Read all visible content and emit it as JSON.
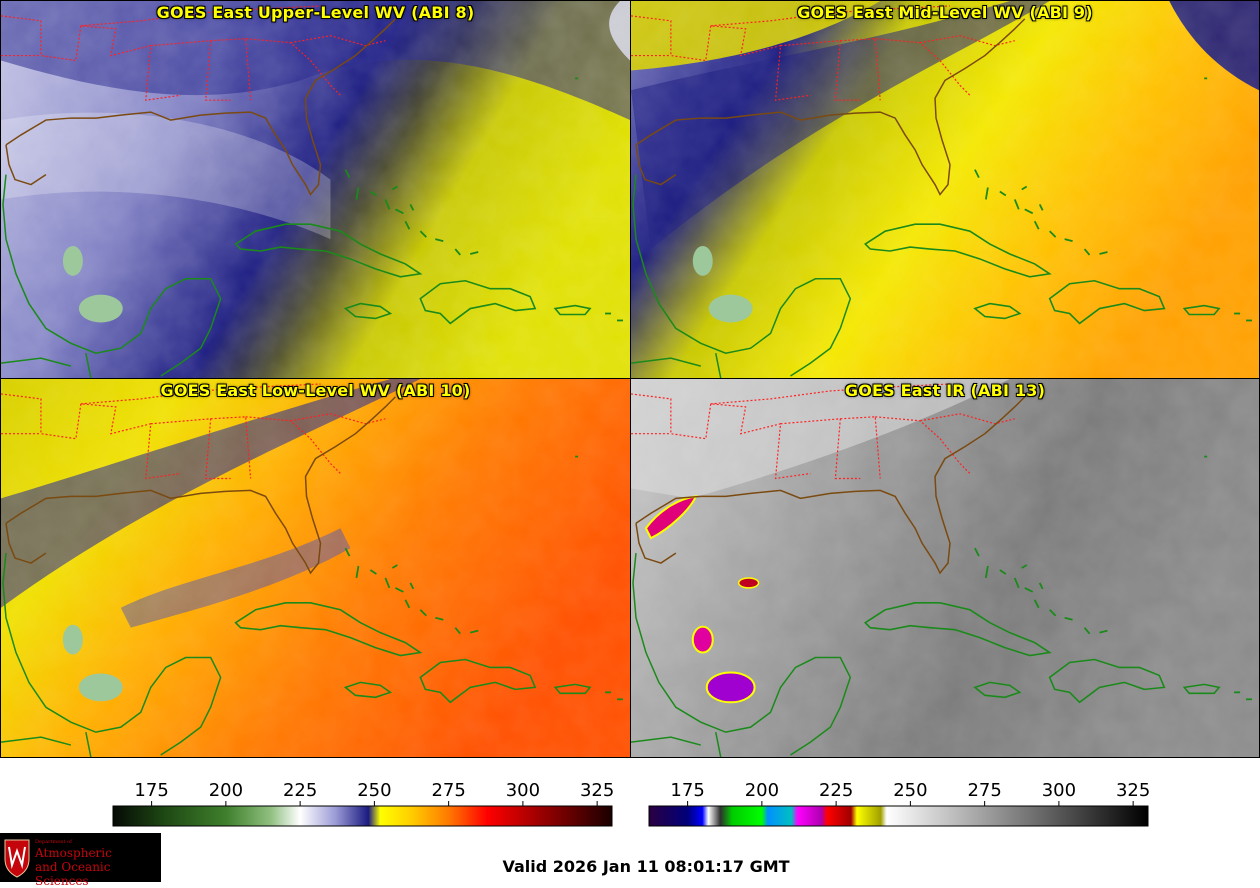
{
  "panels": [
    {
      "title": "GOES East Upper-Level WV (ABI 8)",
      "band": "ABI 8"
    },
    {
      "title": "GOES East Mid-Level WV (ABI 9)",
      "band": "ABI 9"
    },
    {
      "title": "GOES East Low-Level WV (ABI 10)",
      "band": "ABI 10"
    },
    {
      "title": "GOES East IR (ABI 13)",
      "band": "ABI 13"
    }
  ],
  "colorbars": {
    "wv": {
      "ticks": [
        "175",
        "200",
        "225",
        "250",
        "275",
        "300",
        "325"
      ],
      "range": [
        162,
        330
      ],
      "stops": [
        {
          "v": 162,
          "c": "#050a05"
        },
        {
          "v": 180,
          "c": "#1f4a14"
        },
        {
          "v": 200,
          "c": "#3f7f2c"
        },
        {
          "v": 215,
          "c": "#8fbf7f"
        },
        {
          "v": 225,
          "c": "#ffffff"
        },
        {
          "v": 237,
          "c": "#9a9ad6"
        },
        {
          "v": 248,
          "c": "#1a1a80"
        },
        {
          "v": 252,
          "c": "#ffff00"
        },
        {
          "v": 262,
          "c": "#ffd000"
        },
        {
          "v": 275,
          "c": "#ff7a00"
        },
        {
          "v": 288,
          "c": "#ff0000"
        },
        {
          "v": 305,
          "c": "#a00000"
        },
        {
          "v": 330,
          "c": "#1a0000"
        }
      ]
    },
    "ir": {
      "ticks": [
        "175",
        "200",
        "225",
        "250",
        "275",
        "300",
        "325"
      ],
      "range": [
        162,
        330
      ],
      "stops": [
        {
          "v": 162,
          "c": "#2a0040"
        },
        {
          "v": 175,
          "c": "#00007a"
        },
        {
          "v": 180,
          "c": "#0000ff"
        },
        {
          "v": 182,
          "c": "#ffffff"
        },
        {
          "v": 186,
          "c": "#303030"
        },
        {
          "v": 190,
          "c": "#00cc00"
        },
        {
          "v": 200,
          "c": "#00ff00"
        },
        {
          "v": 202,
          "c": "#0090ff"
        },
        {
          "v": 210,
          "c": "#00c0c0"
        },
        {
          "v": 212,
          "c": "#ff00ff"
        },
        {
          "v": 220,
          "c": "#b000b0"
        },
        {
          "v": 222,
          "c": "#ff0000"
        },
        {
          "v": 230,
          "c": "#a00000"
        },
        {
          "v": 232,
          "c": "#ffff00"
        },
        {
          "v": 240,
          "c": "#a0a000"
        },
        {
          "v": 242,
          "c": "#ffffff"
        },
        {
          "v": 330,
          "c": "#000000"
        }
      ]
    }
  },
  "logo": {
    "dept": "Department of",
    "line1": "Atmospheric",
    "line2": "and Oceanic Sciences"
  },
  "valid_time": "Valid 2026 Jan 11 08:01:17 GMT",
  "colors": {
    "title": "#ffff00",
    "state_borders": "#ff2020",
    "coastline_us": "#7a4a10",
    "coastline_other": "#1a8a1a"
  }
}
